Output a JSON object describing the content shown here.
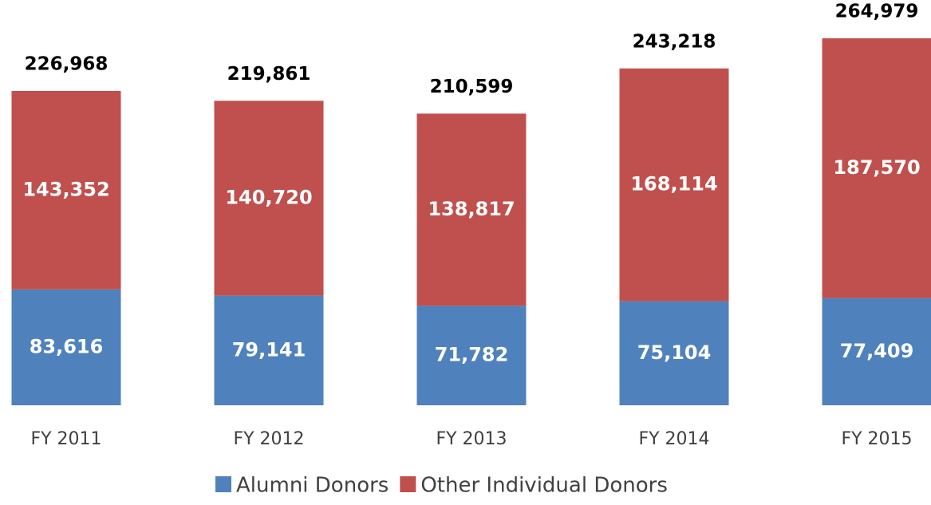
{
  "chart_data": {
    "type": "stacked_bar",
    "categories": [
      "FY 2011",
      "FY 2012",
      "FY 2013",
      "FY 2014",
      "FY 2015"
    ],
    "series": [
      {
        "name": "Alumni Donors",
        "color": "#4f81bd",
        "values": [
          83616,
          79141,
          71782,
          75104,
          77409
        ],
        "value_labels": [
          "83,616",
          "79,141",
          "71,782",
          "75,104",
          "77,409"
        ]
      },
      {
        "name": "Other Individual Donors",
        "color": "#c0504d",
        "values": [
          143352,
          140720,
          138817,
          168114,
          187570
        ],
        "value_labels": [
          "143,352",
          "140,720",
          "138,817",
          "168,114",
          "187,570"
        ]
      }
    ],
    "totals": [
      226968,
      219861,
      210599,
      243218,
      264979
    ],
    "total_labels": [
      "226,968",
      "219,861",
      "210,599",
      "243,218",
      "264,979"
    ],
    "legend": "bottom"
  }
}
